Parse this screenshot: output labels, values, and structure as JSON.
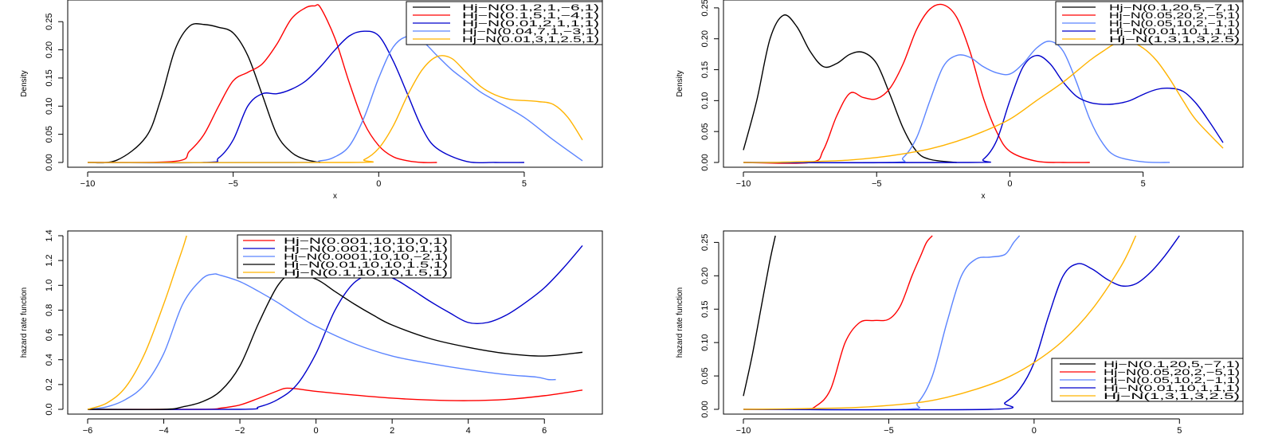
{
  "chart_data": [
    {
      "type": "line",
      "xlabel": "x",
      "ylabel": "Density",
      "xlim": [
        -10,
        7
      ],
      "ylim": [
        0,
        0.28
      ],
      "xticks": [
        -10,
        -5,
        0,
        5
      ],
      "xtick_labels": [
        "−10",
        "−5",
        "0",
        "5"
      ],
      "yticks": [
        0.0,
        0.05,
        0.1,
        0.15,
        0.2,
        0.25
      ],
      "ytick_labels": [
        "0.00",
        "0.05",
        "0.10",
        "0.15",
        "0.20",
        "0.25"
      ],
      "legend_position": "top-right",
      "series": [
        {
          "name": "Hj−N(0.1,2,1,−6,1)",
          "color": "#000000",
          "x": [
            -10,
            -9,
            -8,
            -7.5,
            -7,
            -6.5,
            -6,
            -5.5,
            -5,
            -4.5,
            -4,
            -3.5,
            -3,
            -2.5,
            -2
          ],
          "y": [
            0.0,
            0.004,
            0.045,
            0.11,
            0.2,
            0.242,
            0.245,
            0.24,
            0.23,
            0.19,
            0.12,
            0.05,
            0.018,
            0.005,
            0.0
          ]
        },
        {
          "name": "Hj−N(0.1,5,1,−4,1)",
          "color": "#ff0000",
          "x": [
            -10,
            -7,
            -6.5,
            -6,
            -5.5,
            -5,
            -4.5,
            -4,
            -3.5,
            -3,
            -2.5,
            -2.2,
            -2,
            -1.5,
            -1,
            -0.5,
            0,
            0.5,
            1,
            1.5,
            2
          ],
          "y": [
            0.0,
            0.002,
            0.02,
            0.05,
            0.1,
            0.145,
            0.16,
            0.175,
            0.21,
            0.255,
            0.275,
            0.278,
            0.275,
            0.22,
            0.14,
            0.07,
            0.03,
            0.01,
            0.003,
            0.0,
            0.0
          ]
        },
        {
          "name": "Hj−N(0.01,2,1,1,1)",
          "color": "#0000cc",
          "x": [
            -10,
            -6,
            -5.5,
            -5,
            -4.5,
            -4,
            -3.5,
            -3,
            -2.5,
            -2,
            -1.5,
            -1,
            -0.5,
            0,
            0.5,
            1,
            1.5,
            2,
            3,
            4,
            5
          ],
          "y": [
            0.0,
            0.0,
            0.008,
            0.04,
            0.1,
            0.122,
            0.122,
            0.13,
            0.145,
            0.17,
            0.2,
            0.225,
            0.233,
            0.225,
            0.18,
            0.12,
            0.06,
            0.025,
            0.002,
            0.0,
            0.0
          ]
        },
        {
          "name": "Hj−N(0.04,7,1,−3,1)",
          "color": "#5b84ff",
          "x": [
            -10,
            -3,
            -2,
            -1.5,
            -1,
            -0.5,
            0,
            0.5,
            1,
            1.5,
            2,
            2.5,
            3,
            3.5,
            4,
            5,
            6,
            7
          ],
          "y": [
            0.0,
            0.0,
            0.003,
            0.01,
            0.03,
            0.08,
            0.15,
            0.205,
            0.224,
            0.215,
            0.19,
            0.165,
            0.145,
            0.125,
            0.11,
            0.08,
            0.04,
            0.003
          ]
        },
        {
          "name": "Hj−N(0.01,3,1,2.5,1)",
          "color": "#ffb300",
          "x": [
            -10,
            -1,
            -0.5,
            0,
            0.5,
            1,
            1.5,
            2,
            2.5,
            3,
            3.5,
            4,
            4.5,
            5,
            5.5,
            6,
            6.5,
            7
          ],
          "y": [
            0.0,
            0.0,
            0.005,
            0.025,
            0.065,
            0.12,
            0.165,
            0.188,
            0.185,
            0.16,
            0.135,
            0.12,
            0.112,
            0.11,
            0.108,
            0.103,
            0.08,
            0.04
          ]
        }
      ]
    },
    {
      "type": "line",
      "xlabel": "x",
      "ylabel": "Density",
      "xlim": [
        -10,
        8
      ],
      "ylim": [
        0,
        0.255
      ],
      "xticks": [
        -10,
        -5,
        0,
        5
      ],
      "xtick_labels": [
        "−10",
        "−5",
        "0",
        "5"
      ],
      "yticks": [
        0.0,
        0.05,
        0.1,
        0.15,
        0.2,
        0.25
      ],
      "ytick_labels": [
        "0.00",
        "0.05",
        "0.10",
        "0.15",
        "0.20",
        "0.25"
      ],
      "legend_position": "top-right",
      "series": [
        {
          "name": "Hj−N(0.1,20,5,−7,1)",
          "color": "#000000",
          "x": [
            -10,
            -9.5,
            -9,
            -8.5,
            -8,
            -7.5,
            -7,
            -6.5,
            -6,
            -5.5,
            -5,
            -4.5,
            -4,
            -3.5,
            -3,
            -2
          ],
          "y": [
            0.02,
            0.1,
            0.2,
            0.238,
            0.22,
            0.18,
            0.155,
            0.16,
            0.175,
            0.178,
            0.16,
            0.11,
            0.055,
            0.018,
            0.005,
            0.0
          ]
        },
        {
          "name": "Hj−N(0.05,20,2,−5,1)",
          "color": "#ff0000",
          "x": [
            -10,
            -7.5,
            -7,
            -6.5,
            -6,
            -5.5,
            -5,
            -4.5,
            -4,
            -3.5,
            -3,
            -2.5,
            -2,
            -1.5,
            -1,
            -0.5,
            0,
            1,
            2,
            3
          ],
          "y": [
            0.0,
            0.0,
            0.02,
            0.075,
            0.112,
            0.105,
            0.103,
            0.12,
            0.16,
            0.215,
            0.248,
            0.255,
            0.235,
            0.18,
            0.105,
            0.05,
            0.018,
            0.002,
            0.0,
            0.0
          ]
        },
        {
          "name": "Hj−N(0.05,10,2,−1,1)",
          "color": "#5b84ff",
          "x": [
            -10,
            -4.5,
            -4,
            -3.5,
            -3,
            -2.5,
            -2,
            -1.5,
            -1,
            -0.5,
            0,
            0.5,
            1,
            1.5,
            2,
            2.5,
            3,
            3.5,
            4,
            5,
            6
          ],
          "y": [
            0.0,
            0.0,
            0.008,
            0.04,
            0.1,
            0.155,
            0.173,
            0.17,
            0.155,
            0.145,
            0.143,
            0.16,
            0.185,
            0.196,
            0.18,
            0.13,
            0.07,
            0.03,
            0.01,
            0.001,
            0.0
          ]
        },
        {
          "name": "Hj−N(0.01,10,1,1,1)",
          "color": "#0000cc",
          "x": [
            -10,
            -1.5,
            -1,
            -0.5,
            0,
            0.5,
            1,
            1.5,
            2,
            2.5,
            3,
            3.5,
            4,
            4.5,
            5,
            5.5,
            6,
            6.5,
            7,
            7.5,
            8
          ],
          "y": [
            0.0,
            0.0,
            0.005,
            0.035,
            0.1,
            0.155,
            0.173,
            0.16,
            0.13,
            0.107,
            0.097,
            0.094,
            0.095,
            0.1,
            0.11,
            0.118,
            0.12,
            0.115,
            0.095,
            0.065,
            0.032
          ]
        },
        {
          "name": "Hj−N(1,3,1,3,2.5)",
          "color": "#ffb300",
          "x": [
            -10,
            -9,
            -8,
            -7,
            -6,
            -5,
            -4,
            -3,
            -2,
            -1,
            0,
            1,
            2,
            3,
            3.5,
            4,
            4.5,
            5,
            5.5,
            6,
            6.5,
            7,
            8
          ],
          "y": [
            0.0,
            0.0,
            0.001,
            0.002,
            0.004,
            0.008,
            0.014,
            0.022,
            0.034,
            0.05,
            0.07,
            0.1,
            0.13,
            0.165,
            0.18,
            0.193,
            0.195,
            0.185,
            0.165,
            0.135,
            0.1,
            0.068,
            0.023
          ]
        }
      ]
    },
    {
      "type": "line",
      "xlabel": "x",
      "ylabel": "hazard rate function",
      "xlim": [
        -6,
        7
      ],
      "ylim": [
        0,
        1.4
      ],
      "xticks": [
        -6,
        -4,
        -2,
        0,
        2,
        4,
        6
      ],
      "xtick_labels": [
        "−6",
        "−4",
        "−2",
        "0",
        "2",
        "4",
        "6"
      ],
      "yticks": [
        0.0,
        0.2,
        0.4,
        0.6,
        0.8,
        1.0,
        1.2,
        1.4
      ],
      "ytick_labels": [
        "0.0",
        "0.2",
        "0.4",
        "0.6",
        "0.8",
        "1.0",
        "1.2",
        "1.4"
      ],
      "legend_position": "top-center",
      "series": [
        {
          "name": "Hj−N(0.001,10,10,0,1)",
          "color": "#ff0000",
          "x": [
            -6,
            -3,
            -2.5,
            -2,
            -1.5,
            -1,
            -0.8,
            -0.5,
            0,
            1,
            2,
            3,
            4,
            5,
            6,
            7
          ],
          "y": [
            0.0,
            0.0,
            0.01,
            0.035,
            0.09,
            0.15,
            0.17,
            0.165,
            0.145,
            0.115,
            0.09,
            0.075,
            0.07,
            0.08,
            0.11,
            0.155
          ]
        },
        {
          "name": "Hj−N(0.001,10,10,1,1)",
          "color": "#0000cc",
          "x": [
            -6,
            -2,
            -1.5,
            -1,
            -0.5,
            0,
            0.5,
            1,
            1.5,
            2,
            2.5,
            3,
            3.5,
            4,
            4.5,
            5,
            5.5,
            6,
            6.5,
            7
          ],
          "y": [
            0.0,
            0.0,
            0.02,
            0.08,
            0.2,
            0.45,
            0.8,
            1.02,
            1.09,
            1.06,
            0.97,
            0.87,
            0.78,
            0.7,
            0.7,
            0.76,
            0.86,
            0.98,
            1.14,
            1.32
          ]
        },
        {
          "name": "Hj−N(0.0001,10,10,−2,1)",
          "color": "#5b84ff",
          "x": [
            -6,
            -5.5,
            -5,
            -4.5,
            -4,
            -3.5,
            -3,
            -2.7,
            -2.5,
            -2,
            -1.5,
            -1,
            -0.5,
            0,
            1,
            2,
            3,
            4,
            5,
            5.8,
            6.1,
            6.3
          ],
          "y": [
            0.0,
            0.02,
            0.08,
            0.2,
            0.45,
            0.85,
            1.05,
            1.09,
            1.08,
            1.03,
            0.95,
            0.86,
            0.76,
            0.67,
            0.53,
            0.43,
            0.37,
            0.32,
            0.28,
            0.26,
            0.24,
            0.24
          ]
        },
        {
          "name": "Hj−N(0.01,10,10,1.5,1)",
          "color": "#000000",
          "x": [
            -6,
            -4,
            -3.5,
            -3,
            -2.5,
            -2,
            -1.5,
            -1,
            -0.6,
            0,
            0.5,
            1,
            1.5,
            2,
            3,
            4,
            5,
            6,
            7
          ],
          "y": [
            0.0,
            0.0,
            0.02,
            0.06,
            0.15,
            0.35,
            0.7,
            1.0,
            1.09,
            1.05,
            0.95,
            0.85,
            0.76,
            0.68,
            0.57,
            0.5,
            0.45,
            0.43,
            0.46
          ]
        },
        {
          "name": "Hj−N(0.1,10,10,1.5,1)",
          "color": "#ffb300",
          "x": [
            -6,
            -5.5,
            -5,
            -4.5,
            -4,
            -3.7,
            -3.5,
            -3.4
          ],
          "y": [
            0.0,
            0.05,
            0.18,
            0.45,
            0.85,
            1.12,
            1.3,
            1.4
          ]
        }
      ]
    },
    {
      "type": "line",
      "xlabel": "x",
      "ylabel": "hazard rate function",
      "xlim": [
        -10,
        6.5
      ],
      "ylim": [
        0,
        0.26
      ],
      "xticks": [
        -10,
        -5,
        0,
        5
      ],
      "xtick_labels": [
        "−10",
        "−5",
        "0",
        "5"
      ],
      "yticks": [
        0.0,
        0.05,
        0.1,
        0.15,
        0.2,
        0.25
      ],
      "ytick_labels": [
        "0.00",
        "0.05",
        "0.10",
        "0.15",
        "0.20",
        "0.25"
      ],
      "legend_position": "bottom-right",
      "series": [
        {
          "name": "Hj−N(0.1,20,5,−7,1)",
          "color": "#000000",
          "x": [
            -10,
            -9.7,
            -9.4,
            -9.1,
            -8.9
          ],
          "y": [
            0.02,
            0.08,
            0.15,
            0.22,
            0.26
          ]
        },
        {
          "name": "Hj−N(0.05,20,2,−5,1)",
          "color": "#ff0000",
          "x": [
            -10,
            -8,
            -7.5,
            -7,
            -6.5,
            -6,
            -5.5,
            -5,
            -4.6,
            -4.2,
            -3.9,
            -3.7,
            -3.5
          ],
          "y": [
            0.0,
            0.0,
            0.005,
            0.03,
            0.1,
            0.13,
            0.133,
            0.135,
            0.155,
            0.2,
            0.23,
            0.25,
            0.26
          ]
        },
        {
          "name": "Hj−N(0.05,10,2,−1,1)",
          "color": "#5b84ff",
          "x": [
            -10,
            -4.5,
            -4,
            -3.5,
            -3,
            -2.5,
            -2,
            -1.5,
            -1,
            -0.7,
            -0.5
          ],
          "y": [
            0.0,
            0.0,
            0.01,
            0.05,
            0.13,
            0.2,
            0.225,
            0.228,
            0.232,
            0.25,
            0.26
          ]
        },
        {
          "name": "Hj−N(0.01,10,1,1,1)",
          "color": "#0000cc",
          "x": [
            -10,
            -1.5,
            -1,
            -0.5,
            0,
            0.5,
            1,
            1.5,
            2,
            2.5,
            3,
            3.5,
            4,
            4.5,
            5
          ],
          "y": [
            0.0,
            0.0,
            0.01,
            0.03,
            0.07,
            0.14,
            0.2,
            0.218,
            0.21,
            0.195,
            0.185,
            0.188,
            0.205,
            0.23,
            0.26
          ]
        },
        {
          "name": "Hj−N(1,3,1,3,2.5)",
          "color": "#ffb300",
          "x": [
            -10,
            -8,
            -6,
            -4,
            -3,
            -2,
            -1,
            0,
            1,
            2,
            3,
            3.5
          ],
          "y": [
            0.0,
            0.001,
            0.003,
            0.01,
            0.018,
            0.03,
            0.046,
            0.07,
            0.103,
            0.15,
            0.215,
            0.26
          ]
        }
      ]
    }
  ]
}
